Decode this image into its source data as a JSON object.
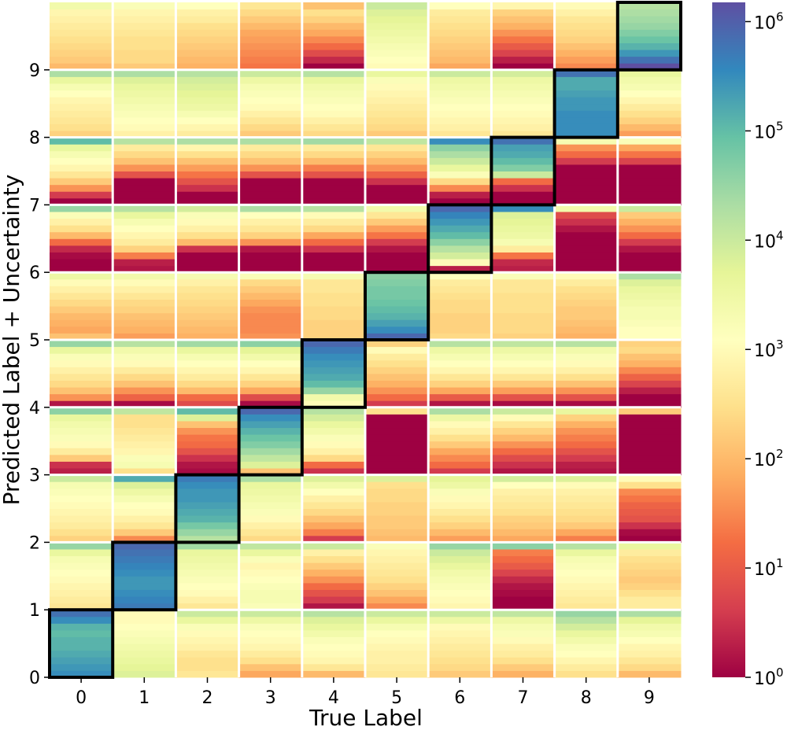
{
  "chart_data": {
    "type": "heatmap",
    "xlabel": "True Label",
    "ylabel": "Predicted Label + Uncertainty",
    "x_ticks": [
      "0",
      "1",
      "2",
      "3",
      "4",
      "5",
      "6",
      "7",
      "8",
      "9"
    ],
    "y_ticks": [
      "0",
      "1",
      "2",
      "3",
      "4",
      "5",
      "6",
      "7",
      "8",
      "9"
    ],
    "sub_rows_per_label": 10,
    "diagonal_highlight": true,
    "colormap": "Spectral",
    "color_scale": "log",
    "colorbar": {
      "range": [
        1,
        1500000
      ],
      "ticks": [
        {
          "value": 1,
          "label": "10",
          "exp": "0"
        },
        {
          "value": 10,
          "label": "10",
          "exp": "1"
        },
        {
          "value": 100,
          "label": "10",
          "exp": "2"
        },
        {
          "value": 1000,
          "label": "10",
          "exp": "3"
        },
        {
          "value": 10000,
          "label": "10",
          "exp": "4"
        },
        {
          "value": 100000,
          "label": "10",
          "exp": "5"
        },
        {
          "value": 1000000,
          "label": "10",
          "exp": "6"
        }
      ]
    },
    "note": "values are log10 of counts; rows listed from sub-row 0 (bottom of band) to sub-row 9 (top of band)",
    "cells": [
      [
        [
          5.5,
          5.4,
          5.3,
          5.2,
          5.1,
          5.1,
          5.0,
          5.1,
          5.5,
          5.8
        ],
        [
          3.8,
          3.7,
          3.6,
          3.5,
          3.4,
          3.3,
          3.2,
          3.1,
          3.0,
          3.0
        ],
        [
          2.6,
          2.5,
          2.5,
          2.6,
          2.8,
          2.9,
          3.0,
          3.2,
          3.6,
          4.0
        ],
        [
          1.8,
          2.1,
          2.5,
          2.7,
          2.9,
          3.0,
          3.1,
          3.2,
          3.5,
          4.0
        ],
        [
          2.0,
          2.6,
          2.9,
          3.0,
          3.1,
          3.2,
          3.4,
          3.6,
          3.8,
          4.2
        ],
        [
          2.6,
          2.7,
          2.8,
          2.8,
          2.9,
          3.0,
          3.1,
          3.3,
          3.6,
          4.0
        ],
        [
          2.2,
          2.4,
          2.5,
          2.6,
          2.7,
          2.8,
          2.9,
          3.0,
          3.5,
          4.0
        ],
        [
          1.9,
          2.2,
          2.5,
          2.7,
          2.8,
          3.0,
          3.2,
          3.3,
          3.5,
          4.1
        ],
        [
          2.5,
          2.7,
          2.9,
          3.1,
          3.2,
          3.4,
          3.6,
          3.9,
          4.2,
          4.5
        ],
        [
          2.0,
          2.4,
          2.6,
          2.8,
          2.9,
          3.1,
          3.3,
          3.4,
          3.7,
          4.3
        ]
      ],
      [
        [
          2.6,
          2.7,
          2.8,
          2.9,
          3.0,
          3.1,
          3.2,
          3.3,
          3.6,
          4.5
        ],
        [
          5.7,
          5.6,
          5.5,
          5.4,
          5.4,
          5.5,
          5.6,
          5.7,
          5.8,
          5.9
        ],
        [
          2.6,
          2.8,
          3.0,
          3.1,
          3.2,
          3.3,
          3.4,
          3.5,
          3.6,
          4.4
        ],
        [
          3.2,
          3.3,
          3.3,
          3.2,
          3.1,
          3.0,
          2.9,
          3.2,
          3.6,
          4.1
        ],
        [
          0.2,
          0.6,
          0.9,
          1.2,
          1.6,
          1.9,
          2.2,
          2.5,
          2.8,
          4.0
        ],
        [
          1.5,
          1.8,
          2.1,
          2.3,
          2.5,
          2.6,
          2.7,
          2.8,
          2.9,
          3.2
        ],
        [
          2.9,
          3.0,
          3.1,
          3.2,
          3.3,
          3.4,
          3.6,
          3.8,
          4.0,
          4.5
        ],
        [
          0.0,
          0.0,
          0.1,
          0.2,
          0.4,
          0.7,
          1.0,
          1.2,
          1.4,
          4.6
        ],
        [
          2.6,
          2.7,
          2.8,
          2.9,
          3.0,
          3.1,
          3.2,
          3.3,
          3.6,
          4.2
        ],
        [
          2.7,
          2.7,
          2.5,
          2.3,
          2.2,
          2.3,
          2.4,
          2.5,
          2.7,
          3.6
        ]
      ],
      [
        [
          2.3,
          2.5,
          2.7,
          2.8,
          2.9,
          3.0,
          3.1,
          3.2,
          3.3,
          4.0
        ],
        [
          1.5,
          2.2,
          2.6,
          2.8,
          3.0,
          3.1,
          3.3,
          3.5,
          3.8,
          5.2
        ],
        [
          4.2,
          4.5,
          4.8,
          5.1,
          5.2,
          5.3,
          5.4,
          5.4,
          5.5,
          5.7
        ],
        [
          2.4,
          2.6,
          2.8,
          3.0,
          3.2,
          3.3,
          3.4,
          3.5,
          3.6,
          4.3
        ],
        [
          0.6,
          1.4,
          1.8,
          2.1,
          2.4,
          2.6,
          2.8,
          3.1,
          3.4,
          3.8
        ],
        [
          2.0,
          2.1,
          2.2,
          2.2,
          2.3,
          2.3,
          2.4,
          2.4,
          2.5,
          3.8
        ],
        [
          1.7,
          2.0,
          2.3,
          2.5,
          2.7,
          2.9,
          3.0,
          3.2,
          3.5,
          3.7
        ],
        [
          1.8,
          2.0,
          2.2,
          2.3,
          2.5,
          2.6,
          2.7,
          2.8,
          3.1,
          3.9
        ],
        [
          1.4,
          1.8,
          2.2,
          2.4,
          2.5,
          2.6,
          2.7,
          2.8,
          3.0,
          3.8
        ],
        [
          0.0,
          0.1,
          0.5,
          0.9,
          1.0,
          1.1,
          1.3,
          1.5,
          2.5,
          3.0
        ]
      ],
      [
        [
          0.3,
          0.5,
          2.2,
          2.7,
          3.0,
          3.2,
          3.3,
          3.4,
          3.6,
          4.6
        ],
        [
          2.5,
          3.3,
          3.2,
          2.9,
          2.8,
          2.7,
          2.6,
          2.5,
          2.5,
          4.1
        ],
        [
          0.1,
          0.2,
          0.5,
          0.9,
          1.2,
          1.3,
          1.6,
          2.1,
          3.8,
          5.0
        ],
        [
          2.1,
          3.8,
          4.1,
          4.4,
          4.7,
          4.9,
          5.1,
          5.3,
          5.5,
          5.9
        ],
        [
          0.5,
          1.2,
          2.4,
          2.8,
          3.0,
          3.2,
          3.4,
          3.6,
          3.9,
          4.2
        ],
        [
          0.0,
          0.0,
          0.0,
          0.0,
          0.0,
          0.0,
          0.0,
          0.0,
          0.0,
          2.5
        ],
        [
          0.6,
          1.2,
          1.5,
          1.8,
          2.2,
          2.5,
          2.8,
          3.0,
          3.5,
          4.3
        ],
        [
          0.2,
          0.5,
          0.8,
          1.2,
          1.6,
          2.0,
          2.3,
          2.6,
          3.0,
          4.0
        ],
        [
          0.2,
          0.3,
          0.6,
          0.9,
          1.2,
          1.4,
          1.6,
          1.9,
          2.3,
          3.6
        ],
        [
          0.0,
          0.0,
          0.0,
          0.0,
          0.0,
          0.0,
          0.0,
          0.0,
          0.0,
          2.2
        ]
      ],
      [
        [
          0.2,
          1.6,
          2.1,
          2.4,
          2.6,
          2.8,
          3.0,
          3.2,
          3.6,
          4.5
        ],
        [
          0.1,
          1.1,
          1.6,
          2.1,
          2.4,
          2.7,
          3.0,
          3.2,
          3.4,
          4.2
        ],
        [
          0.8,
          1.2,
          2.0,
          2.4,
          2.7,
          2.9,
          3.1,
          3.3,
          3.6,
          4.4
        ],
        [
          0.1,
          0.8,
          1.8,
          2.3,
          2.6,
          2.9,
          3.1,
          3.4,
          3.7,
          4.6
        ],
        [
          3.0,
          3.4,
          4.5,
          5.0,
          5.2,
          5.3,
          5.4,
          5.5,
          5.7,
          5.9
        ],
        [
          0.6,
          1.2,
          1.6,
          1.9,
          2.1,
          2.3,
          2.5,
          2.7,
          3.0,
          2.3
        ],
        [
          0.2,
          1.0,
          1.8,
          2.3,
          2.6,
          2.9,
          3.1,
          3.3,
          3.5,
          4.2
        ],
        [
          0.1,
          0.9,
          1.7,
          2.2,
          2.6,
          2.9,
          3.1,
          3.3,
          3.5,
          4.1
        ],
        [
          0.1,
          0.9,
          1.6,
          2.1,
          2.5,
          2.8,
          3.0,
          3.2,
          3.4,
          4.2
        ],
        [
          0.0,
          0.0,
          0.3,
          0.7,
          1.1,
          1.5,
          1.9,
          2.1,
          2.4,
          2.3
        ]
      ],
      [
        [
          2.1,
          1.8,
          1.9,
          2.0,
          2.2,
          2.4,
          2.6,
          2.8,
          3.0,
          3.5
        ],
        [
          1.7,
          1.9,
          2.0,
          2.1,
          2.3,
          2.4,
          2.6,
          2.8,
          3.0,
          3.4
        ],
        [
          1.9,
          2.0,
          2.1,
          2.2,
          2.3,
          2.4,
          2.5,
          2.6,
          2.8,
          3.3
        ],
        [
          1.6,
          1.5,
          1.5,
          1.5,
          1.6,
          1.8,
          2.0,
          2.2,
          2.4,
          3.2
        ],
        [
          2.3,
          2.3,
          2.3,
          2.4,
          2.4,
          2.5,
          2.5,
          2.6,
          2.6,
          3.3
        ],
        [
          5.9,
          5.5,
          5.3,
          5.1,
          5.0,
          4.9,
          4.8,
          4.8,
          4.7,
          4.6
        ],
        [
          2.4,
          2.3,
          2.3,
          2.3,
          2.4,
          2.4,
          2.5,
          2.6,
          2.7,
          3.1
        ],
        [
          2.3,
          2.4,
          2.4,
          2.4,
          2.5,
          2.5,
          2.5,
          2.6,
          2.6,
          3.2
        ],
        [
          1.9,
          2.0,
          2.1,
          2.2,
          2.2,
          2.3,
          2.4,
          2.5,
          2.7,
          3.0
        ],
        [
          3.1,
          3.1,
          3.2,
          3.3,
          3.3,
          3.4,
          3.5,
          3.6,
          3.8,
          4.3
        ]
      ],
      [
        [
          0.0,
          0.0,
          0.1,
          0.4,
          1.2,
          2.0,
          2.5,
          2.8,
          3.2,
          4.5
        ],
        [
          0.2,
          0.3,
          1.4,
          2.3,
          2.7,
          2.9,
          3.1,
          3.3,
          3.6,
          4.2
        ],
        [
          0.0,
          0.0,
          0.0,
          0.5,
          2.0,
          2.5,
          2.8,
          3.0,
          3.2,
          3.9
        ],
        [
          0.0,
          0.0,
          0.0,
          0.2,
          1.6,
          2.3,
          2.6,
          2.8,
          3.1,
          4.3
        ],
        [
          0.0,
          0.0,
          0.0,
          0.5,
          1.2,
          1.8,
          2.4,
          2.7,
          3.0,
          4.2
        ],
        [
          0.0,
          0.0,
          0.0,
          0.2,
          0.6,
          1.3,
          1.7,
          2.2,
          2.6,
          3.4
        ],
        [
          0.3,
          3.0,
          3.9,
          4.2,
          4.6,
          5.0,
          5.2,
          5.4,
          5.6,
          5.9
        ],
        [
          0.3,
          0.4,
          1.3,
          2.7,
          3.3,
          3.5,
          3.6,
          3.7,
          3.8,
          5.5
        ],
        [
          0.0,
          0.0,
          0.0,
          0.0,
          0.0,
          0.0,
          0.2,
          0.5,
          0.8,
          3.4
        ],
        [
          0.0,
          0.0,
          0.0,
          0.2,
          0.6,
          1.2,
          1.6,
          1.9,
          2.2,
          4.0
        ]
      ],
      [
        [
          0.0,
          0.6,
          1.6,
          2.2,
          2.6,
          2.9,
          3.1,
          3.3,
          3.6,
          5.0
        ],
        [
          0.0,
          0.0,
          0.0,
          0.0,
          0.9,
          1.6,
          2.1,
          2.4,
          2.7,
          4.2
        ],
        [
          0.0,
          0.0,
          0.5,
          0.9,
          1.3,
          1.7,
          2.1,
          2.5,
          2.9,
          4.3
        ],
        [
          0.0,
          0.0,
          0.0,
          0.0,
          0.9,
          1.6,
          2.1,
          2.4,
          2.7,
          4.3
        ],
        [
          0.0,
          0.0,
          0.0,
          0.0,
          0.9,
          1.4,
          2.0,
          2.4,
          2.7,
          4.4
        ],
        [
          0.0,
          0.0,
          0.0,
          0.5,
          1.1,
          1.6,
          2.0,
          2.3,
          2.6,
          4.1
        ],
        [
          0.0,
          0.3,
          1.5,
          2.4,
          3.2,
          3.6,
          4.0,
          4.3,
          4.6,
          5.5
        ],
        [
          0.0,
          0.0,
          0.5,
          1.2,
          4.0,
          4.7,
          5.0,
          5.2,
          5.3,
          5.8
        ],
        [
          0.0,
          0.0,
          0.0,
          0.0,
          0.0,
          0.0,
          0.6,
          1.2,
          1.6,
          3.3
        ],
        [
          0.0,
          0.0,
          0.0,
          0.0,
          0.0,
          0.0,
          0.7,
          1.3,
          1.8,
          3.2
        ]
      ],
      [
        [
          2.3,
          2.5,
          2.6,
          2.7,
          2.8,
          2.9,
          3.1,
          3.3,
          3.6,
          4.3
        ],
        [
          2.8,
          3.0,
          3.1,
          3.2,
          3.3,
          3.4,
          3.5,
          3.6,
          3.8,
          4.3
        ],
        [
          2.7,
          2.9,
          3.1,
          3.3,
          3.5,
          3.6,
          3.7,
          3.8,
          3.9,
          4.2
        ],
        [
          2.2,
          2.4,
          2.6,
          2.8,
          3.0,
          3.1,
          3.2,
          3.3,
          3.5,
          4.0
        ],
        [
          2.4,
          2.6,
          2.8,
          3.0,
          3.1,
          3.2,
          3.3,
          3.4,
          3.6,
          4.2
        ],
        [
          2.2,
          2.4,
          2.5,
          2.6,
          2.7,
          2.8,
          2.9,
          3.0,
          3.2,
          3.6
        ],
        [
          2.6,
          2.8,
          2.9,
          3.0,
          3.1,
          3.2,
          3.3,
          3.4,
          3.5,
          4.0
        ],
        [
          2.6,
          2.8,
          2.9,
          3.0,
          3.1,
          3.2,
          3.3,
          3.4,
          3.5,
          3.9
        ],
        [
          5.5,
          5.5,
          5.5,
          5.5,
          5.4,
          5.4,
          5.3,
          5.2,
          5.2,
          5.8
        ],
        [
          1.7,
          2.0,
          2.3,
          2.5,
          2.7,
          2.9,
          3.1,
          3.3,
          3.4,
          3.6
        ]
      ],
      [
        [
          2.0,
          2.2,
          2.3,
          2.4,
          2.5,
          2.6,
          2.7,
          2.8,
          2.9,
          3.4
        ],
        [
          2.2,
          2.4,
          2.4,
          2.5,
          2.5,
          2.6,
          2.7,
          2.8,
          2.9,
          3.2
        ],
        [
          1.9,
          2.0,
          2.1,
          2.2,
          2.3,
          2.4,
          2.5,
          2.7,
          2.8,
          3.1
        ],
        [
          1.3,
          1.4,
          1.5,
          1.6,
          1.7,
          1.8,
          2.0,
          2.2,
          2.4,
          2.6
        ],
        [
          0.0,
          0.4,
          0.8,
          1.2,
          1.5,
          1.8,
          2.0,
          2.3,
          2.5,
          2.1
        ],
        [
          3.0,
          3.1,
          3.2,
          3.3,
          3.4,
          3.5,
          3.6,
          3.7,
          3.8,
          4.0
        ],
        [
          1.8,
          2.0,
          2.1,
          2.2,
          2.3,
          2.4,
          2.5,
          2.6,
          2.7,
          3.1
        ],
        [
          0.0,
          0.3,
          0.7,
          1.0,
          1.3,
          1.6,
          1.9,
          2.1,
          2.3,
          2.9
        ],
        [
          1.5,
          1.7,
          1.9,
          2.1,
          2.3,
          2.4,
          2.5,
          2.6,
          2.8,
          3.0
        ],
        [
          6.2,
          5.8,
          5.4,
          5.1,
          4.9,
          4.7,
          4.5,
          4.4,
          4.3,
          4.2
        ]
      ]
    ]
  }
}
